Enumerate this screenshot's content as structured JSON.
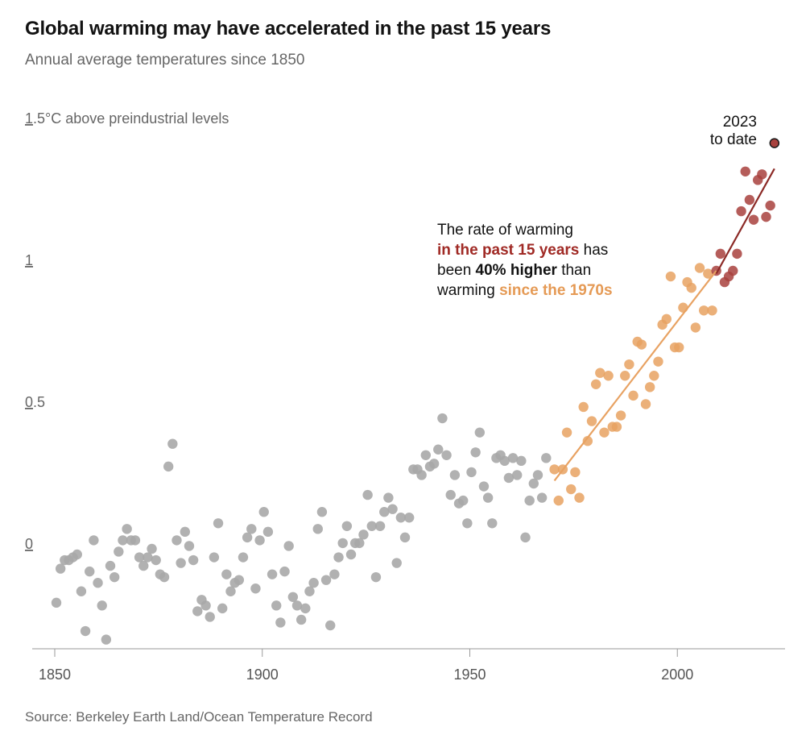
{
  "header": {
    "title": "Global warming may have accelerated in the past 15 years",
    "subtitle": "Annual average temperatures since 1850"
  },
  "footer": {
    "source": "Source: Berkeley Earth Land/Ocean Temperature Record"
  },
  "colors": {
    "early": "#a8a8a8",
    "since_1970s": "#e8a262",
    "past_15_years": "#a8413d",
    "trend_1970s": "#e8a262",
    "trend_15": "#8c2a26",
    "axis": "#999999"
  },
  "chart_data": {
    "type": "scatter",
    "title": "Global warming may have accelerated in the past 15 years",
    "subtitle": "Annual average temperatures since 1850",
    "xlim": [
      1850,
      2024
    ],
    "ylim": [
      -0.3,
      1.5
    ],
    "x_ticks": [
      {
        "value": 1850,
        "label": "1850"
      },
      {
        "value": 1900,
        "label": "1900"
      },
      {
        "value": 1950,
        "label": "1950"
      },
      {
        "value": 2000,
        "label": "2000"
      }
    ],
    "y_ticks": [
      {
        "value": 0,
        "label": "0",
        "ul": "0",
        "rest": ""
      },
      {
        "value": 0.5,
        "label": "0.5",
        "ul": "0",
        "rest": ".5"
      },
      {
        "value": 1,
        "label": "1",
        "ul": "1",
        "rest": ""
      },
      {
        "value": 1.5,
        "label": "1.5°C above preindustrial levels",
        "ul": "1",
        "rest": ".5°C above preindustrial levels"
      }
    ],
    "grid": false,
    "series": [
      {
        "key": "early",
        "points": [
          [
            1850,
            -0.17
          ],
          [
            1851,
            -0.05
          ],
          [
            1852,
            -0.02
          ],
          [
            1853,
            -0.02
          ],
          [
            1854,
            -0.01
          ],
          [
            1855,
            0.0
          ],
          [
            1856,
            -0.13
          ],
          [
            1857,
            -0.27
          ],
          [
            1858,
            -0.06
          ],
          [
            1859,
            0.05
          ],
          [
            1860,
            -0.1
          ],
          [
            1861,
            -0.18
          ],
          [
            1862,
            -0.3
          ],
          [
            1863,
            -0.04
          ],
          [
            1864,
            -0.08
          ],
          [
            1865,
            0.01
          ],
          [
            1866,
            0.05
          ],
          [
            1867,
            0.09
          ],
          [
            1868,
            0.05
          ],
          [
            1869,
            0.05
          ],
          [
            1870,
            -0.01
          ],
          [
            1871,
            -0.04
          ],
          [
            1872,
            -0.01
          ],
          [
            1873,
            0.02
          ],
          [
            1874,
            -0.02
          ],
          [
            1875,
            -0.07
          ],
          [
            1876,
            -0.08
          ],
          [
            1877,
            0.31
          ],
          [
            1878,
            0.39
          ],
          [
            1879,
            0.05
          ],
          [
            1880,
            -0.03
          ],
          [
            1881,
            0.08
          ],
          [
            1882,
            0.03
          ],
          [
            1883,
            -0.02
          ],
          [
            1884,
            -0.2
          ],
          [
            1885,
            -0.16
          ],
          [
            1886,
            -0.18
          ],
          [
            1887,
            -0.22
          ],
          [
            1888,
            -0.01
          ],
          [
            1889,
            0.11
          ],
          [
            1890,
            -0.19
          ],
          [
            1891,
            -0.07
          ],
          [
            1892,
            -0.13
          ],
          [
            1893,
            -0.1
          ],
          [
            1894,
            -0.09
          ],
          [
            1895,
            -0.01
          ],
          [
            1896,
            0.06
          ],
          [
            1897,
            0.09
          ],
          [
            1898,
            -0.12
          ],
          [
            1899,
            0.05
          ],
          [
            1900,
            0.15
          ],
          [
            1901,
            0.08
          ],
          [
            1902,
            -0.07
          ],
          [
            1903,
            -0.18
          ],
          [
            1904,
            -0.24
          ],
          [
            1905,
            -0.06
          ],
          [
            1906,
            0.03
          ],
          [
            1907,
            -0.15
          ],
          [
            1908,
            -0.18
          ],
          [
            1909,
            -0.23
          ],
          [
            1910,
            -0.19
          ],
          [
            1911,
            -0.13
          ],
          [
            1912,
            -0.1
          ],
          [
            1913,
            0.09
          ],
          [
            1914,
            0.15
          ],
          [
            1915,
            -0.09
          ],
          [
            1916,
            -0.25
          ],
          [
            1917,
            -0.07
          ],
          [
            1918,
            -0.01
          ],
          [
            1919,
            0.04
          ],
          [
            1920,
            0.1
          ],
          [
            1921,
            0.0
          ],
          [
            1922,
            0.04
          ],
          [
            1923,
            0.04
          ],
          [
            1924,
            0.07
          ],
          [
            1925,
            0.21
          ],
          [
            1926,
            0.1
          ],
          [
            1927,
            -0.08
          ],
          [
            1928,
            0.1
          ],
          [
            1929,
            0.15
          ],
          [
            1930,
            0.2
          ],
          [
            1931,
            0.16
          ],
          [
            1932,
            -0.03
          ],
          [
            1933,
            0.13
          ],
          [
            1934,
            0.06
          ],
          [
            1935,
            0.13
          ],
          [
            1936,
            0.3
          ],
          [
            1937,
            0.3
          ],
          [
            1938,
            0.28
          ],
          [
            1939,
            0.35
          ],
          [
            1940,
            0.31
          ],
          [
            1941,
            0.32
          ],
          [
            1942,
            0.37
          ],
          [
            1943,
            0.48
          ],
          [
            1944,
            0.35
          ],
          [
            1945,
            0.21
          ],
          [
            1946,
            0.28
          ],
          [
            1947,
            0.18
          ],
          [
            1948,
            0.19
          ],
          [
            1949,
            0.11
          ],
          [
            1950,
            0.29
          ],
          [
            1951,
            0.36
          ],
          [
            1952,
            0.43
          ],
          [
            1953,
            0.24
          ],
          [
            1954,
            0.2
          ],
          [
            1955,
            0.11
          ],
          [
            1956,
            0.34
          ],
          [
            1957,
            0.35
          ],
          [
            1958,
            0.33
          ],
          [
            1959,
            0.27
          ],
          [
            1960,
            0.34
          ],
          [
            1961,
            0.28
          ],
          [
            1962,
            0.33
          ],
          [
            1963,
            0.06
          ],
          [
            1964,
            0.19
          ],
          [
            1965,
            0.25
          ],
          [
            1966,
            0.28
          ],
          [
            1967,
            0.2
          ],
          [
            1968,
            0.34
          ]
        ]
      },
      {
        "key": "since_1970s",
        "points": [
          [
            1970,
            0.3
          ],
          [
            1971,
            0.19
          ],
          [
            1972,
            0.3
          ],
          [
            1973,
            0.43
          ],
          [
            1974,
            0.23
          ],
          [
            1975,
            0.29
          ],
          [
            1976,
            0.2
          ],
          [
            1977,
            0.52
          ],
          [
            1978,
            0.4
          ],
          [
            1979,
            0.47
          ],
          [
            1980,
            0.6
          ],
          [
            1981,
            0.64
          ],
          [
            1982,
            0.43
          ],
          [
            1983,
            0.63
          ],
          [
            1984,
            0.45
          ],
          [
            1985,
            0.45
          ],
          [
            1986,
            0.49
          ],
          [
            1987,
            0.63
          ],
          [
            1988,
            0.67
          ],
          [
            1989,
            0.56
          ],
          [
            1990,
            0.75
          ],
          [
            1991,
            0.74
          ],
          [
            1992,
            0.53
          ],
          [
            1993,
            0.59
          ],
          [
            1994,
            0.63
          ],
          [
            1995,
            0.68
          ],
          [
            1996,
            0.81
          ],
          [
            1997,
            0.83
          ],
          [
            1998,
            0.98
          ],
          [
            1999,
            0.73
          ],
          [
            2000,
            0.73
          ],
          [
            2001,
            0.87
          ],
          [
            2002,
            0.96
          ],
          [
            2003,
            0.94
          ],
          [
            2004,
            0.8
          ],
          [
            2005,
            1.01
          ],
          [
            2006,
            0.86
          ],
          [
            2007,
            0.99
          ],
          [
            2008,
            0.86
          ]
        ]
      },
      {
        "key": "past_15_years",
        "points": [
          [
            2009,
            1.0
          ],
          [
            2010,
            1.06
          ],
          [
            2011,
            0.96
          ],
          [
            2012,
            0.98
          ],
          [
            2013,
            1.0
          ],
          [
            2014,
            1.06
          ],
          [
            2015,
            1.21
          ],
          [
            2016,
            1.35
          ],
          [
            2017,
            1.25
          ],
          [
            2018,
            1.18
          ],
          [
            2019,
            1.32
          ],
          [
            2020,
            1.34
          ],
          [
            2021,
            1.19
          ],
          [
            2022,
            1.23
          ]
        ]
      },
      {
        "key": "2023_to_date",
        "points": [
          [
            2023,
            1.45
          ]
        ]
      }
    ],
    "trend_lines": [
      {
        "key": "since_1970s",
        "from": [
          1970,
          0.26
        ],
        "to": [
          2009,
          1.0
        ]
      },
      {
        "key": "past_15_years",
        "from": [
          2009,
          0.99
        ],
        "to": [
          2023,
          1.36
        ]
      }
    ],
    "annotations": {
      "latest_label_line1": "2023",
      "latest_label_line2": "to date",
      "rate_line1": "The rate of warming",
      "rate_line2_red": "in the past 15 years",
      "rate_line2_rest": " has",
      "rate_line3_pre": "been ",
      "rate_line3_bold": "40% higher",
      "rate_line3_rest": " than",
      "rate_line4_pre": "warming ",
      "rate_line4_orange": "since the 1970s"
    }
  }
}
